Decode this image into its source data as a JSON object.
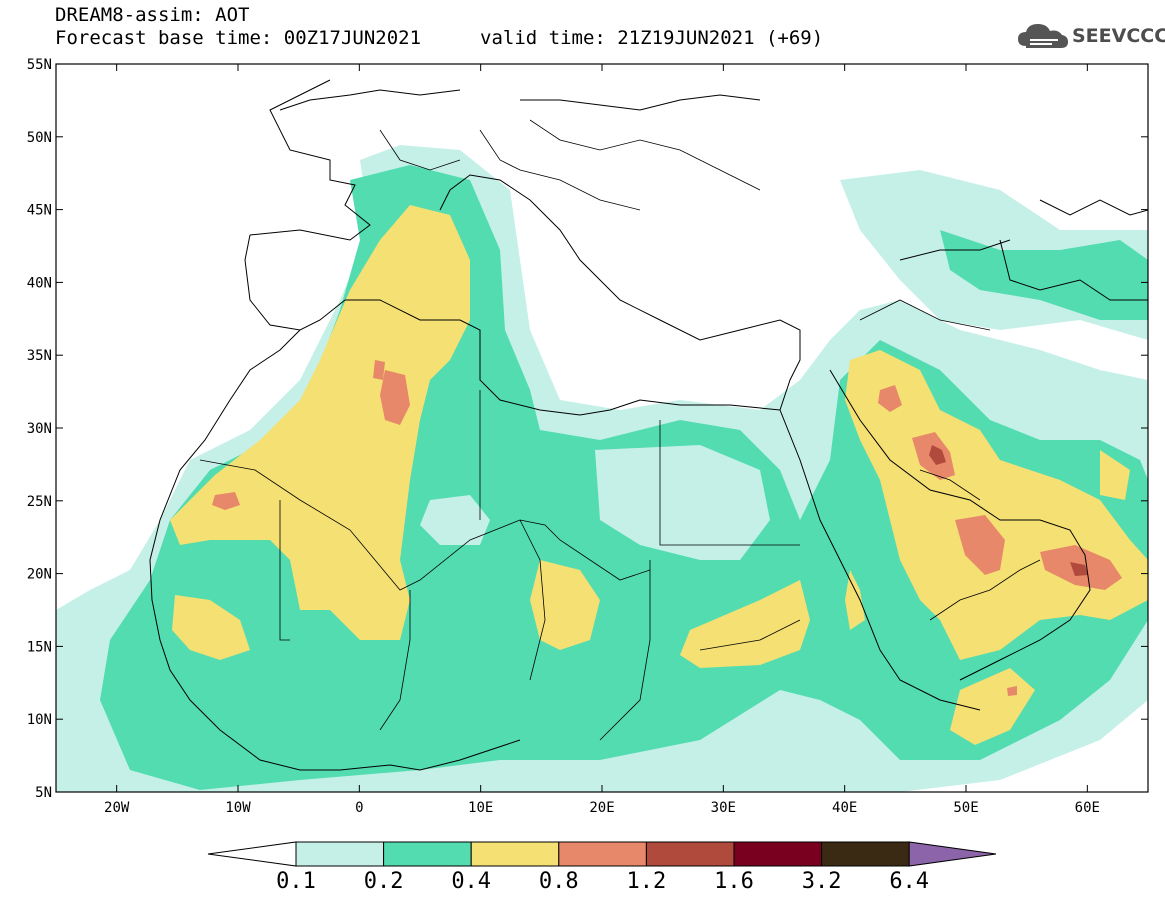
{
  "header": {
    "title": "DREAM8-assim: AOT",
    "base_time": "Forecast base time: 00Z17JUN2021",
    "valid_time": "valid time: 21Z19JUN2021 (+69)"
  },
  "logo": {
    "text": "SEEVCCC",
    "icon": "cloud-icon"
  },
  "map": {
    "lon_range": [
      -25,
      65
    ],
    "lat_range": [
      5,
      55
    ],
    "lat_ticks": [
      {
        "v": 55,
        "label": "55N"
      },
      {
        "v": 50,
        "label": "50N"
      },
      {
        "v": 45,
        "label": "45N"
      },
      {
        "v": 40,
        "label": "40N"
      },
      {
        "v": 35,
        "label": "35N"
      },
      {
        "v": 30,
        "label": "30N"
      },
      {
        "v": 25,
        "label": "25N"
      },
      {
        "v": 20,
        "label": "20N"
      },
      {
        "v": 15,
        "label": "15N"
      },
      {
        "v": 10,
        "label": "10N"
      },
      {
        "v": 5,
        "label": "5N"
      }
    ],
    "lon_ticks": [
      {
        "v": -20,
        "label": "20W"
      },
      {
        "v": -10,
        "label": "10W"
      },
      {
        "v": 0,
        "label": "0"
      },
      {
        "v": 10,
        "label": "10E"
      },
      {
        "v": 20,
        "label": "20E"
      },
      {
        "v": 30,
        "label": "30E"
      },
      {
        "v": 40,
        "label": "40E"
      },
      {
        "v": 50,
        "label": "50E"
      },
      {
        "v": 60,
        "label": "60E"
      }
    ],
    "field_colors": {
      "level_0_1": "#c4f0e8",
      "level_0_2": "#52dcb0",
      "level_0_4": "#f5e073",
      "level_0_8": "#e8886a",
      "level_1_2": "#b04a3c"
    }
  },
  "colorbar": {
    "labels": [
      "0.1",
      "0.2",
      "0.4",
      "0.8",
      "1.2",
      "1.6",
      "3.2",
      "6.4"
    ],
    "colors": [
      "#c4f0e8",
      "#52dcb0",
      "#f5e073",
      "#e8886a",
      "#b04a3c",
      "#7a0020",
      "#3a2a14"
    ],
    "under_color": "#ffffff",
    "over_color": "#8c64aa"
  }
}
